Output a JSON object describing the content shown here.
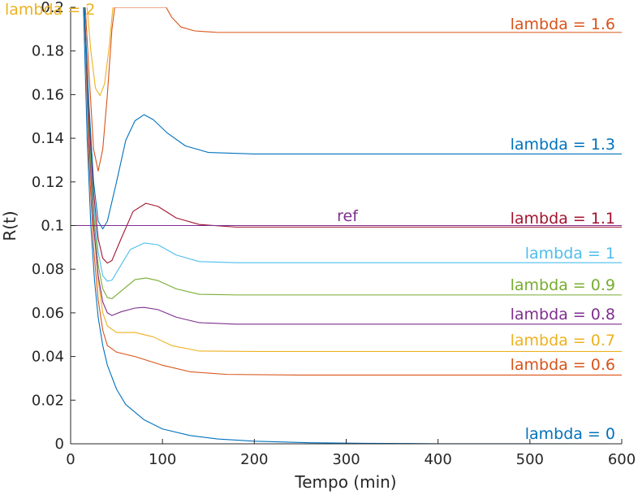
{
  "chart_data": {
    "type": "line",
    "title": "",
    "xlabel": "Tempo (min)",
    "ylabel": "R(t)",
    "xlim": [
      0,
      600
    ],
    "ylim": [
      0,
      0.2
    ],
    "grid": false,
    "xticks": [
      0,
      100,
      200,
      300,
      400,
      500,
      600
    ],
    "xtick_labels": [
      "0",
      "100",
      "200",
      "300",
      "400",
      "500",
      "600"
    ],
    "yticks": [
      0,
      0.02,
      0.04,
      0.06,
      0.08,
      0.1,
      0.12,
      0.14,
      0.16,
      0.18,
      0.2
    ],
    "ytick_labels": [
      "0",
      "0.02",
      "0.04",
      "0.06",
      "0.08",
      "0.1",
      "0.12",
      "0.14",
      "0.16",
      "0.18",
      "0.2"
    ],
    "reference": {
      "label": "ref",
      "value": 0.1,
      "color": "#7e2f8e"
    },
    "series": [
      {
        "name": "lambda = 0",
        "color": "#0072bd",
        "points": [
          [
            14,
            0.2
          ],
          [
            18,
            0.14
          ],
          [
            22,
            0.1
          ],
          [
            26,
            0.075
          ],
          [
            30,
            0.058
          ],
          [
            35,
            0.045
          ],
          [
            40,
            0.036
          ],
          [
            50,
            0.025
          ],
          [
            60,
            0.018
          ],
          [
            80,
            0.011
          ],
          [
            100,
            0.0068
          ],
          [
            130,
            0.0038
          ],
          [
            160,
            0.0022
          ],
          [
            200,
            0.0012
          ],
          [
            260,
            0.0005
          ],
          [
            320,
            0.0002
          ],
          [
            400,
            5e-05
          ],
          [
            600,
            0
          ]
        ]
      },
      {
        "name": "lambda = 0.6",
        "color": "#d95319",
        "points": [
          [
            15,
            0.2
          ],
          [
            20,
            0.13
          ],
          [
            25,
            0.09
          ],
          [
            30,
            0.066
          ],
          [
            35,
            0.052
          ],
          [
            40,
            0.045
          ],
          [
            50,
            0.042
          ],
          [
            70,
            0.04
          ],
          [
            100,
            0.036
          ],
          [
            130,
            0.033
          ],
          [
            170,
            0.0318
          ],
          [
            250,
            0.0315
          ],
          [
            600,
            0.0315
          ]
        ]
      },
      {
        "name": "lambda = 0.7",
        "color": "#edb120",
        "points": [
          [
            15,
            0.2
          ],
          [
            20,
            0.14
          ],
          [
            25,
            0.1
          ],
          [
            30,
            0.075
          ],
          [
            35,
            0.06
          ],
          [
            40,
            0.054
          ],
          [
            50,
            0.051
          ],
          [
            70,
            0.051
          ],
          [
            90,
            0.049
          ],
          [
            110,
            0.045
          ],
          [
            140,
            0.0425
          ],
          [
            200,
            0.0423
          ],
          [
            600,
            0.0423
          ]
        ]
      },
      {
        "name": "lambda = 0.8",
        "color": "#7e2f8e",
        "points": [
          [
            15,
            0.2
          ],
          [
            20,
            0.14
          ],
          [
            25,
            0.1
          ],
          [
            30,
            0.077
          ],
          [
            35,
            0.065
          ],
          [
            40,
            0.06
          ],
          [
            45,
            0.0588
          ],
          [
            55,
            0.0605
          ],
          [
            70,
            0.0622
          ],
          [
            80,
            0.0625
          ],
          [
            95,
            0.0615
          ],
          [
            115,
            0.058
          ],
          [
            140,
            0.0555
          ],
          [
            180,
            0.0548
          ],
          [
            250,
            0.0548
          ],
          [
            600,
            0.0548
          ]
        ]
      },
      {
        "name": "lambda = 0.9",
        "color": "#77ac30",
        "points": [
          [
            15,
            0.2
          ],
          [
            20,
            0.145
          ],
          [
            25,
            0.105
          ],
          [
            30,
            0.082
          ],
          [
            35,
            0.071
          ],
          [
            40,
            0.067
          ],
          [
            45,
            0.0665
          ],
          [
            55,
            0.07
          ],
          [
            70,
            0.0752
          ],
          [
            82,
            0.076
          ],
          [
            95,
            0.0748
          ],
          [
            115,
            0.071
          ],
          [
            140,
            0.0685
          ],
          [
            180,
            0.0682
          ],
          [
            600,
            0.0682
          ]
        ]
      },
      {
        "name": "lambda = 1",
        "color": "#4dbeee",
        "points": [
          [
            15,
            0.2
          ],
          [
            20,
            0.15
          ],
          [
            25,
            0.11
          ],
          [
            30,
            0.088
          ],
          [
            35,
            0.077
          ],
          [
            40,
            0.0745
          ],
          [
            45,
            0.075
          ],
          [
            55,
            0.082
          ],
          [
            65,
            0.089
          ],
          [
            80,
            0.092
          ],
          [
            95,
            0.0912
          ],
          [
            115,
            0.0865
          ],
          [
            140,
            0.0835
          ],
          [
            180,
            0.083
          ],
          [
            600,
            0.083
          ]
        ]
      },
      {
        "name": "lambda = 1.1",
        "color": "#a2142f",
        "points": [
          [
            15,
            0.2
          ],
          [
            20,
            0.15
          ],
          [
            25,
            0.115
          ],
          [
            30,
            0.094
          ],
          [
            35,
            0.085
          ],
          [
            40,
            0.0828
          ],
          [
            45,
            0.084
          ],
          [
            55,
            0.094
          ],
          [
            68,
            0.1065
          ],
          [
            82,
            0.1102
          ],
          [
            95,
            0.1088
          ],
          [
            115,
            0.1035
          ],
          [
            140,
            0.1005
          ],
          [
            180,
            0.0993
          ],
          [
            600,
            0.0993
          ]
        ]
      },
      {
        "name": "lambda = 1.3",
        "color": "#0072bd",
        "points": [
          [
            15,
            0.2
          ],
          [
            20,
            0.155
          ],
          [
            25,
            0.12
          ],
          [
            30,
            0.102
          ],
          [
            35,
            0.0985
          ],
          [
            40,
            0.102
          ],
          [
            50,
            0.12
          ],
          [
            60,
            0.139
          ],
          [
            70,
            0.148
          ],
          [
            80,
            0.1508
          ],
          [
            90,
            0.1485
          ],
          [
            105,
            0.1425
          ],
          [
            125,
            0.1365
          ],
          [
            150,
            0.1335
          ],
          [
            200,
            0.1328
          ],
          [
            600,
            0.1328
          ]
        ]
      },
      {
        "name": "lambda = 1.6",
        "color": "#d95319",
        "points": [
          [
            16,
            0.2
          ],
          [
            20,
            0.17
          ],
          [
            25,
            0.135
          ],
          [
            30,
            0.125
          ],
          [
            35,
            0.135
          ],
          [
            40,
            0.16
          ],
          [
            45,
            0.19
          ],
          [
            48,
            0.2
          ],
          [
            104,
            0.2
          ],
          [
            110,
            0.1955
          ],
          [
            120,
            0.191
          ],
          [
            135,
            0.1892
          ],
          [
            160,
            0.1885
          ],
          [
            250,
            0.1885
          ],
          [
            600,
            0.1885
          ]
        ]
      },
      {
        "name": "lambda = 2",
        "color": "#edb120",
        "points": [
          [
            18,
            0.2
          ],
          [
            22,
            0.18
          ],
          [
            27,
            0.163
          ],
          [
            32,
            0.1595
          ],
          [
            37,
            0.165
          ],
          [
            42,
            0.182
          ],
          [
            46,
            0.2
          ]
        ]
      }
    ]
  }
}
